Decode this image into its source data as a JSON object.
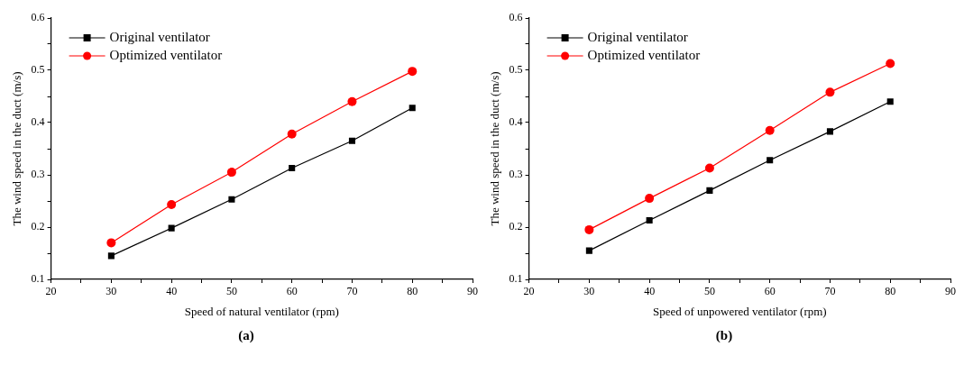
{
  "chart_data": [
    {
      "type": "line",
      "xlabel": "Speed of natural ventilator (rpm)",
      "ylabel": "The wind speed in the duct (m/s)",
      "annotations": [
        "(a)"
      ],
      "x": [
        30,
        40,
        50,
        60,
        70,
        80
      ],
      "series": [
        {
          "name": "Original ventilator",
          "color": "#000000",
          "marker": "square",
          "values": [
            0.145,
            0.198,
            0.253,
            0.313,
            0.365,
            0.428
          ]
        },
        {
          "name": "Optimized ventilator",
          "color": "#ff0000",
          "marker": "circle",
          "values": [
            0.17,
            0.243,
            0.305,
            0.378,
            0.44,
            0.498
          ]
        }
      ],
      "xlim": [
        20,
        90
      ],
      "xticks": [
        20,
        {
          "value": 25,
          "label": null
        },
        30,
        {
          "value": 35,
          "label": null
        },
        40,
        {
          "value": 45,
          "label": null
        },
        50,
        {
          "value": 55,
          "label": null
        },
        60,
        {
          "value": 65,
          "label": null
        },
        70,
        {
          "value": 75,
          "label": null
        },
        80,
        {
          "value": 85,
          "label": null
        },
        90
      ],
      "ylim": [
        0.1,
        0.6
      ],
      "yticks": [
        0.1,
        {
          "value": 0.15,
          "label": null
        },
        0.2,
        {
          "value": 0.25,
          "label": null
        },
        0.3,
        {
          "value": 0.35,
          "label": null
        },
        0.4,
        {
          "value": 0.45,
          "label": null
        },
        0.5,
        {
          "value": 0.55,
          "label": null
        },
        0.6
      ],
      "legend": "top left"
    },
    {
      "type": "line",
      "xlabel": "Speed of unpowered ventilator (rpm)",
      "ylabel": "The wind speed in the duct (m/s)",
      "annotations": [
        "(b)"
      ],
      "x": [
        30,
        40,
        50,
        60,
        70,
        80
      ],
      "series": [
        {
          "name": "Original ventilator",
          "color": "#000000",
          "marker": "square",
          "values": [
            0.155,
            0.213,
            0.27,
            0.328,
            0.383,
            0.44
          ]
        },
        {
          "name": "Optimized ventilator",
          "color": "#ff0000",
          "marker": "circle",
          "values": [
            0.195,
            0.255,
            0.313,
            0.385,
            0.458,
            0.513
          ]
        }
      ],
      "xlim": [
        20,
        90
      ],
      "xticks": [
        20,
        {
          "value": 25,
          "label": null
        },
        30,
        {
          "value": 35,
          "label": null
        },
        40,
        {
          "value": 45,
          "label": null
        },
        50,
        {
          "value": 55,
          "label": null
        },
        60,
        {
          "value": 65,
          "label": null
        },
        70,
        {
          "value": 75,
          "label": null
        },
        80,
        {
          "value": 85,
          "label": null
        },
        90
      ],
      "ylim": [
        0.1,
        0.6
      ],
      "yticks": [
        0.1,
        {
          "value": 0.15,
          "label": null
        },
        0.2,
        {
          "value": 0.25,
          "label": null
        },
        0.3,
        {
          "value": 0.35,
          "label": null
        },
        0.4,
        {
          "value": 0.45,
          "label": null
        },
        0.5,
        {
          "value": 0.55,
          "label": null
        },
        0.6
      ],
      "legend": "top left"
    }
  ]
}
